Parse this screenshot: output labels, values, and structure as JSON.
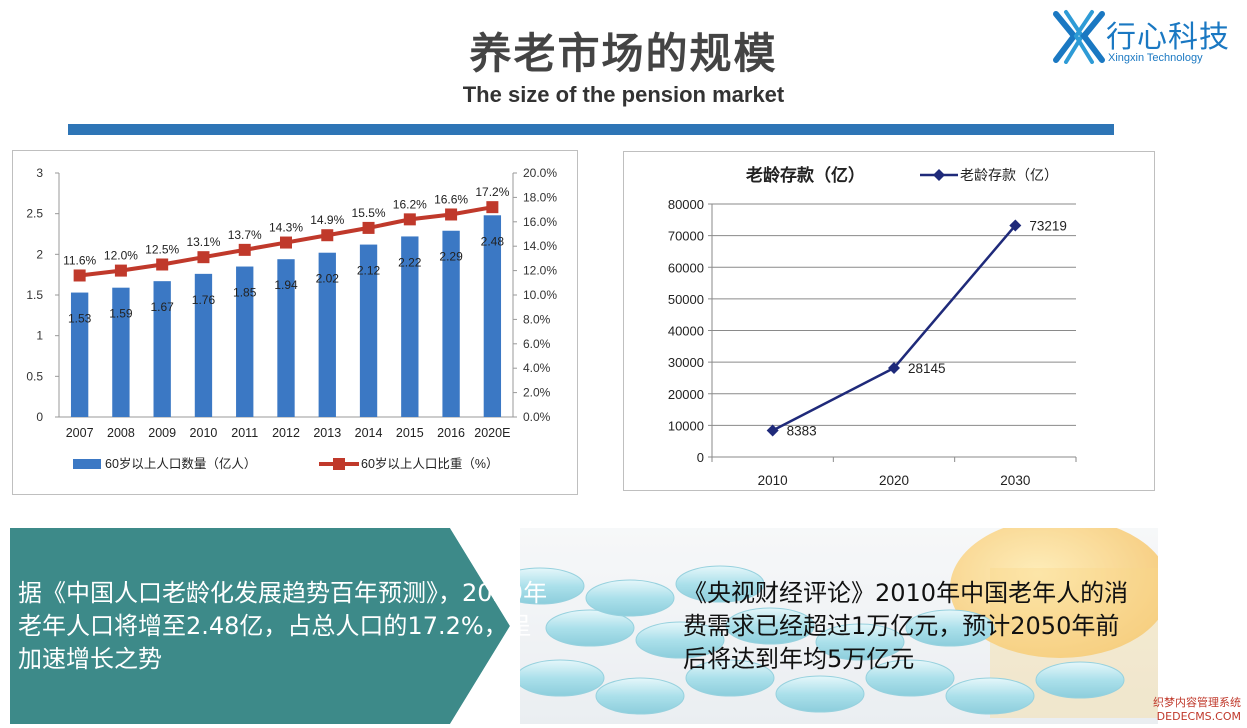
{
  "header": {
    "title": "养老市场的规模",
    "subtitle": "The size of the pension market"
  },
  "logo": {
    "name": "行心科技",
    "english": "Xingxin Technology"
  },
  "chart_data": [
    {
      "type": "bar+line",
      "categories": [
        "2007",
        "2008",
        "2009",
        "2010",
        "2011",
        "2012",
        "2013",
        "2014",
        "2015",
        "2016",
        "2020E"
      ],
      "series": [
        {
          "name": "60岁以上人口数量（亿人）",
          "type": "bar",
          "axis": "left",
          "color": "#3b78c4",
          "values": [
            1.53,
            1.59,
            1.67,
            1.76,
            1.85,
            1.94,
            2.02,
            2.12,
            2.22,
            2.29,
            2.48
          ],
          "labels": [
            "1.53",
            "1.59",
            "1.67",
            "1.76",
            "1.85",
            "1.94",
            "2.02",
            "2.12",
            "2.22",
            "2.29",
            "2.48"
          ]
        },
        {
          "name": "60岁以上人口比重（%）",
          "type": "line",
          "axis": "right",
          "color": "#c0392b",
          "values": [
            11.6,
            12.0,
            12.5,
            13.1,
            13.7,
            14.3,
            14.9,
            15.5,
            16.2,
            16.6,
            17.2
          ],
          "labels": [
            "11.6%",
            "12.0%",
            "12.5%",
            "13.1%",
            "13.7%",
            "14.3%",
            "14.9%",
            "15.5%",
            "16.2%",
            "16.6%",
            "17.2%"
          ]
        }
      ],
      "ylim": [
        0,
        3
      ],
      "y_ticks": [
        "0",
        "0.5",
        "1",
        "1.5",
        "2",
        "2.5",
        "3"
      ],
      "y2lim": [
        0,
        20
      ],
      "y2_ticks": [
        "0.0%",
        "2.0%",
        "4.0%",
        "6.0%",
        "8.0%",
        "10.0%",
        "12.0%",
        "14.0%",
        "16.0%",
        "18.0%",
        "20.0%"
      ],
      "grid": false,
      "legend_position": "bottom"
    },
    {
      "type": "line",
      "title": "老龄存款（亿）",
      "categories": [
        "2010",
        "2020",
        "2030"
      ],
      "series": [
        {
          "name": "老龄存款（亿）",
          "color": "#1f2a7a",
          "values": [
            8383,
            28145,
            73219
          ],
          "labels": [
            "8383",
            "28145",
            "73219"
          ]
        }
      ],
      "ylim": [
        0,
        80000
      ],
      "y_ticks": [
        "0",
        "10000",
        "20000",
        "30000",
        "40000",
        "50000",
        "60000",
        "70000",
        "80000"
      ],
      "grid": true,
      "legend_position": "top-right"
    }
  ],
  "panels": {
    "left_text": "据《中国人口老龄化发展趋势百年预测》，2020年老年人口将增至2.48亿，占总人口的17.2%，呈加速增长之势",
    "right_text": "《央视财经评论》2010年中国老年人的消费需求已经超过1万亿元，预计2050年前后将达到年均5万亿元"
  },
  "watermark": {
    "line1": "织梦内容管理系统",
    "line2": "DEDECMS.COM"
  },
  "colors": {
    "accent_blue": "#2e75b6",
    "teal": "#3d8a89",
    "bar_blue": "#3b78c4",
    "line_red": "#c0392b",
    "line_navy": "#1f2a7a"
  }
}
